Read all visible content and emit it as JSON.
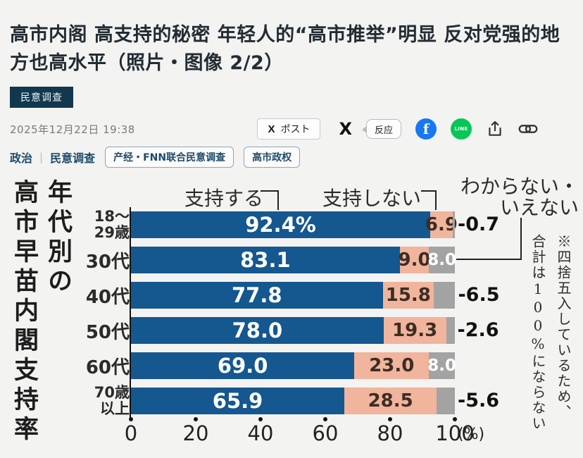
{
  "article": {
    "title": "高市内阁 高支持的秘密 年轻人的“高市推举”明显 反对党强的地方也高水平（照片・图像 2/2）",
    "category_badge": "民意调查",
    "date": "2025年12月22日 19:38",
    "breadcrumbs": [
      "政治",
      "民意调查"
    ],
    "breadcrumb_separator": "|",
    "tags": [
      "产经・FNN联合民意调查",
      "高市政权"
    ],
    "social": {
      "x_logo": "X",
      "post_label": "ポスト",
      "react_label": "反应",
      "facebook_label": "f",
      "line_label": "LINE"
    }
  },
  "chart_data": {
    "type": "bar",
    "orientation": "horizontal",
    "title": "年代別の高市早苗内閣支持率",
    "title_columns": [
      "年代別の",
      "高市早苗内閣支持率"
    ],
    "note": "※四捨五入しているため、合計は100%にならない",
    "note_columns": [
      "※四捨五入しているため、",
      "合計は100%にならない"
    ],
    "legend": [
      "支持する",
      "支持しない",
      "わからない・いえない"
    ],
    "categories": [
      "18～\n29歳",
      "30代",
      "40代",
      "50代",
      "60代",
      "70歳\n以上"
    ],
    "series": [
      {
        "name": "支持する",
        "color": "#15578f",
        "values": [
          92.4,
          83.1,
          77.8,
          78.0,
          69.0,
          65.9
        ]
      },
      {
        "name": "支持しない",
        "color": "#f1b49c",
        "values": [
          6.9,
          9.0,
          15.8,
          19.3,
          23.0,
          28.5
        ]
      },
      {
        "name": "わからない・いえない",
        "color": "#a3a3a3",
        "values": [
          0.7,
          8.0,
          6.5,
          2.6,
          8.0,
          5.6
        ]
      }
    ],
    "first_bar_label_suffix": "%",
    "dk_label_inside": [
      false,
      true,
      false,
      false,
      true,
      false
    ],
    "x_ticks": [
      0,
      20,
      40,
      60,
      80,
      100
    ],
    "x_unit": "(%)",
    "xlim": [
      0,
      100
    ]
  }
}
